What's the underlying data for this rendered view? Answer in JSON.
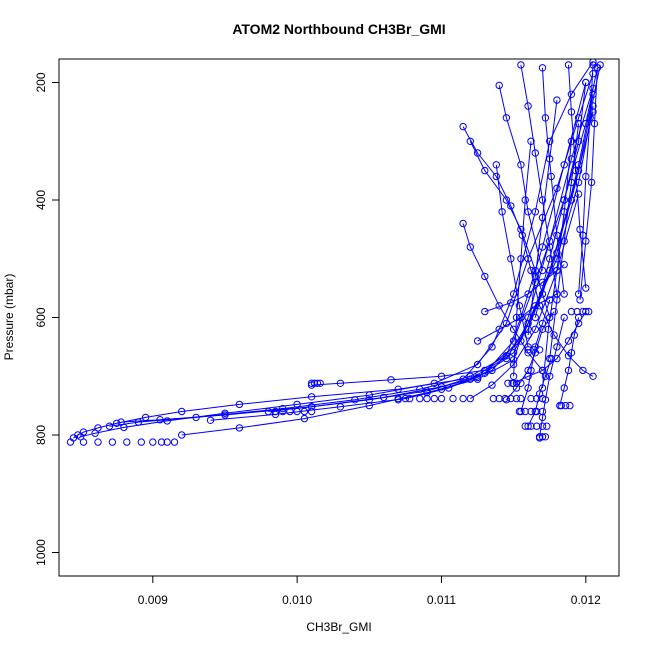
{
  "chart_data": {
    "type": "line",
    "title": "ATOM2 Northbound CH3Br_GMI",
    "xlabel": "CH3Br_GMI",
    "ylabel": "Pressure (mbar)",
    "xlim": [
      0.00835,
      0.01223
    ],
    "ylim": [
      1040,
      160
    ],
    "y_reversed": true,
    "x_ticks": [
      "0.009",
      "0.010",
      "0.011",
      "0.012"
    ],
    "y_ticks": [
      "200",
      "400",
      "600",
      "800",
      "1000"
    ],
    "grid": false,
    "legend": "none",
    "colors": {
      "series": "#0000ff",
      "text": "#000000",
      "axis": "#000000"
    },
    "marker": "open-circle",
    "series": [
      {
        "x": [
          0.00845,
          0.00848,
          0.00852,
          0.00862,
          0.00875,
          0.00895,
          0.0092,
          0.0096,
          0.0101,
          0.0107,
          0.01115,
          0.01135,
          0.0115,
          0.01165,
          0.01175,
          0.0119,
          0.01205
        ],
        "y": [
          805,
          800,
          795,
          788,
          780,
          770,
          760,
          748,
          735,
          722,
          705,
          650,
          560,
          420,
          300,
          220,
          165
        ]
      },
      {
        "x": [
          0.0085,
          0.0086,
          0.0088,
          0.0091,
          0.0095,
          0.01,
          0.0105,
          0.01095,
          0.01125,
          0.01145,
          0.0116,
          0.0118,
          0.01195,
          0.01205
        ],
        "y": [
          803,
          797,
          787,
          776,
          763,
          748,
          732,
          712,
          680,
          610,
          500,
          380,
          260,
          185
        ]
      },
      {
        "x": [
          0.0087,
          0.0089,
          0.0093,
          0.0099,
          0.0104,
          0.01085,
          0.0112,
          0.01145,
          0.01155,
          0.0117,
          0.01185,
          0.012
        ],
        "y": [
          785,
          778,
          770,
          755,
          740,
          722,
          700,
          665,
          600,
          480,
          340,
          200
        ]
      },
      {
        "x": [
          0.00878,
          0.00905,
          0.0095,
          0.0101,
          0.0106,
          0.011,
          0.0113,
          0.0115,
          0.01165,
          0.01185,
          0.012,
          0.01208
        ],
        "y": [
          778,
          774,
          766,
          752,
          736,
          718,
          695,
          640,
          540,
          400,
          270,
          175
        ]
      },
      {
        "x": [
          0.0092,
          0.0096,
          0.01005,
          0.0105,
          0.0109,
          0.01125,
          0.0115,
          0.0116,
          0.01175,
          0.0119,
          0.01205
        ],
        "y": [
          800,
          788,
          772,
          750,
          728,
          705,
          672,
          600,
          470,
          330,
          210
        ]
      },
      {
        "x": [
          0.0094,
          0.00985,
          0.0103,
          0.01075,
          0.01105,
          0.01135,
          0.0116,
          0.0118,
          0.01195,
          0.01205
        ],
        "y": [
          775,
          765,
          752,
          738,
          720,
          690,
          620,
          490,
          340,
          220
        ]
      },
      {
        "x": [
          0.0098,
          0.0101,
          0.0105,
          0.0109,
          0.0112,
          0.0115,
          0.0117,
          0.0119,
          0.01205
        ],
        "y": [
          760,
          752,
          740,
          725,
          705,
          660,
          560,
          400,
          250
        ]
      },
      {
        "x": [
          0.0101,
          0.0103,
          0.01065,
          0.011,
          0.0113,
          0.01155,
          0.01175,
          0.01195,
          0.0121
        ],
        "y": [
          715,
          712,
          706,
          700,
          690,
          640,
          520,
          350,
          170
        ]
      },
      {
        "x": [
          0.0107,
          0.011,
          0.01125,
          0.01145,
          0.0116,
          0.0118,
          0.01195,
          0.01205
        ],
        "y": [
          740,
          722,
          702,
          670,
          610,
          500,
          370,
          240
        ]
      },
      {
        "x": [
          0.0112,
          0.01135,
          0.0115,
          0.01165,
          0.0118,
          0.01195
        ],
        "y": [
          738,
          715,
          680,
          620,
          520,
          390
        ]
      },
      {
        "x": [
          0.01125,
          0.0114,
          0.01155,
          0.01165,
          0.0118
        ],
        "y": [
          640,
          620,
          600,
          580,
          560
        ]
      },
      {
        "x": [
          0.0113,
          0.01148,
          0.0116,
          0.0117,
          0.01185
        ],
        "y": [
          590,
          575,
          560,
          540,
          510
        ]
      },
      {
        "x": [
          0.0115,
          0.0116,
          0.0117,
          0.0118,
          0.01188,
          0.01195,
          0.012
        ],
        "y": [
          712,
          700,
          690,
          670,
          640,
          610,
          590
        ]
      },
      {
        "x": [
          0.01155,
          0.0116,
          0.01162,
          0.01165,
          0.0117,
          0.01175
        ],
        "y": [
          760,
          720,
          690,
          650,
          610,
          570
        ]
      },
      {
        "x": [
          0.01168,
          0.0117,
          0.01172,
          0.01175,
          0.0118,
          0.01185
        ],
        "y": [
          805,
          770,
          740,
          700,
          650,
          600
        ]
      },
      {
        "x": [
          0.0116,
          0.01165,
          0.01168,
          0.01172,
          0.01176
        ],
        "y": [
          785,
          760,
          730,
          700,
          670
        ]
      },
      {
        "x": [
          0.01182,
          0.01185,
          0.01188,
          0.0119,
          0.01192,
          0.01195
        ],
        "y": [
          750,
          720,
          690,
          660,
          630,
          600
        ]
      },
      {
        "x": [
          0.01145,
          0.01152,
          0.0116,
          0.01165,
          0.0117,
          0.01178
        ],
        "y": [
          740,
          720,
          690,
          660,
          620,
          590
        ]
      },
      {
        "x": [
          0.01115,
          0.01125,
          0.01138,
          0.01148,
          0.01156,
          0.01162,
          0.01168,
          0.01178,
          0.01188,
          0.01198,
          0.01205
        ],
        "y": [
          275,
          320,
          360,
          410,
          460,
          520,
          580,
          630,
          665,
          690,
          700
        ]
      },
      {
        "x": [
          0.01115,
          0.0112,
          0.0113,
          0.0114,
          0.0115,
          0.0116,
          0.0117
        ],
        "y": [
          440,
          480,
          530,
          580,
          620,
          660,
          690
        ]
      },
      {
        "x": [
          0.0112,
          0.0113,
          0.01145,
          0.01155,
          0.01165,
          0.01175
        ],
        "y": [
          300,
          350,
          400,
          450,
          520,
          600
        ]
      },
      {
        "x": [
          0.0114,
          0.01145,
          0.01155,
          0.0116,
          0.0117
        ],
        "y": [
          205,
          260,
          340,
          420,
          520
        ]
      },
      {
        "x": [
          0.01155,
          0.0116,
          0.01165,
          0.0117,
          0.01175,
          0.0118
        ],
        "y": [
          170,
          240,
          320,
          400,
          480,
          560
        ]
      },
      {
        "x": [
          0.0117,
          0.01172,
          0.01176,
          0.0118,
          0.01185
        ],
        "y": [
          175,
          260,
          360,
          460,
          560
        ]
      },
      {
        "x": [
          0.01188,
          0.0119,
          0.01193,
          0.01196,
          0.012
        ],
        "y": [
          170,
          250,
          350,
          450,
          550
        ]
      },
      {
        "x": [
          0.01205,
          0.01203,
          0.012,
          0.01198,
          0.01195
        ],
        "y": [
          170,
          260,
          360,
          460,
          560
        ]
      },
      {
        "x": [
          0.01208,
          0.01206,
          0.01204,
          0.012,
          0.01196
        ],
        "y": [
          175,
          270,
          370,
          470,
          570
        ]
      },
      {
        "x": [
          0.0118,
          0.01175,
          0.0117,
          0.01165,
          0.0116
        ],
        "y": [
          230,
          330,
          430,
          530,
          630
        ]
      },
      {
        "x": [
          0.01195,
          0.0119,
          0.01185,
          0.0118,
          0.01175
        ],
        "y": [
          270,
          370,
          470,
          570,
          670
        ]
      },
      {
        "x": [
          0.01162,
          0.01158,
          0.01155,
          0.01152,
          0.0115
        ],
        "y": [
          300,
          400,
          500,
          600,
          700
        ]
      },
      {
        "x": [
          0.012,
          0.01195,
          0.01185,
          0.01175,
          0.01165
        ],
        "y": [
          200,
          300,
          400,
          500,
          600
        ]
      },
      {
        "x": [
          0.0119,
          0.01185,
          0.0118,
          0.01174,
          0.0117
        ],
        "y": [
          300,
          420,
          520,
          620,
          720
        ]
      },
      {
        "x": [
          0.01138,
          0.01142,
          0.01148,
          0.01154,
          0.0116
        ],
        "y": [
          340,
          420,
          500,
          580,
          650
        ]
      }
    ],
    "clusters": [
      {
        "x": [
          0.00843,
          0.00852,
          0.00862,
          0.00872,
          0.00882,
          0.00892,
          0.009,
          0.00906,
          0.0091,
          0.00915
        ],
        "y": 812
      },
      {
        "x": [
          0.00985,
          0.0099,
          0.00995,
          0.01,
          0.01005,
          0.0101
        ],
        "y": 760
      },
      {
        "x": [
          0.0101,
          0.01012,
          0.01014,
          0.01016
        ],
        "y": 712
      },
      {
        "x": [
          0.0107,
          0.01078,
          0.01085,
          0.0109,
          0.01095,
          0.011,
          0.01108,
          0.01115
        ],
        "y": 738
      },
      {
        "x": [
          0.01136,
          0.0114,
          0.01144,
          0.01148,
          0.01152,
          0.01155
        ],
        "y": 738
      },
      {
        "x": [
          0.01146,
          0.01149,
          0.01152,
          0.01155
        ],
        "y": 712
      },
      {
        "x": [
          0.01154,
          0.01158,
          0.01162,
          0.01166,
          0.0117
        ],
        "y": 760
      },
      {
        "x": [
          0.01158,
          0.01162,
          0.01166,
          0.0117,
          0.01173
        ],
        "y": 785
      },
      {
        "x": [
          0.01168,
          0.0117,
          0.01172
        ],
        "y": 803
      },
      {
        "x": [
          0.01162,
          0.01166,
          0.0117
        ],
        "y": 738
      },
      {
        "x": [
          0.0116,
          0.01164,
          0.01168
        ],
        "y": 655
      },
      {
        "x": [
          0.01183,
          0.01186,
          0.01189
        ],
        "y": 750
      },
      {
        "x": [
          0.0119,
          0.01194,
          0.01198,
          0.01202
        ],
        "y": 590
      }
    ]
  }
}
